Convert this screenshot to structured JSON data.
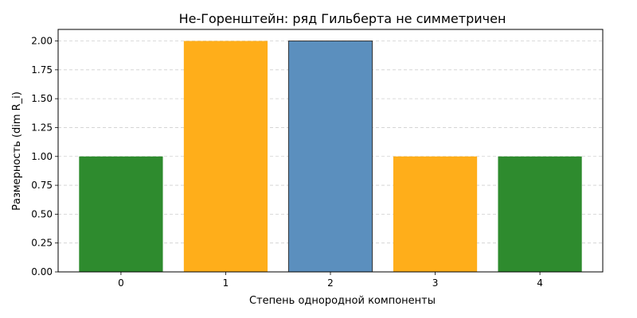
{
  "chart_data": {
    "type": "bar",
    "title": "Не-Горенштейн: ряд Гильберта не симметричен",
    "xlabel": "Степень однородной компоненты",
    "ylabel": "Размерность (dim R_i)",
    "categories": [
      "0",
      "1",
      "2",
      "3",
      "4"
    ],
    "values": [
      1,
      2,
      2,
      1,
      1
    ],
    "bar_colors": [
      "#2e8b2e",
      "#ffae1a",
      "#5b8fbe",
      "#ffae1a",
      "#2e8b2e"
    ],
    "highlighted_index": 2,
    "ylim": [
      0,
      2.1
    ],
    "yticks": [
      0,
      0.25,
      0.5,
      0.75,
      1.0,
      1.25,
      1.5,
      1.75,
      2.0
    ],
    "ytick_labels": [
      "0.00",
      "0.25",
      "0.50",
      "0.75",
      "1.00",
      "1.25",
      "1.50",
      "1.75",
      "2.00"
    ],
    "grid": "y-dashed"
  }
}
